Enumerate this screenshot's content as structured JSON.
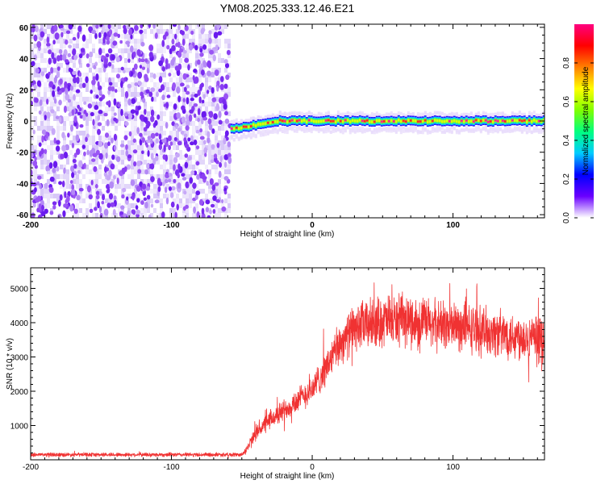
{
  "title": "YM08.2025.333.12.46.E21",
  "chart_data": [
    {
      "type": "heatmap",
      "name": "spectrogram",
      "xlabel": "Height of straight line (km)",
      "ylabel": "Frequency (Hz)",
      "xlim": [
        -200,
        165
      ],
      "ylim": [
        -62,
        62
      ],
      "xticks": [
        -200,
        -100,
        0,
        100
      ],
      "xtick_labels": [
        "-200",
        "-100",
        "0",
        "100"
      ],
      "yticks": [
        -60,
        -40,
        -20,
        0,
        20,
        40,
        60
      ],
      "ytick_labels": [
        "-60",
        "-40",
        "-20",
        "0",
        "20",
        "40",
        "60"
      ],
      "noise_region_x": [
        -200,
        -58
      ],
      "signal_start_x": -58,
      "signal_frequency_hz": 0,
      "signal_start_frequency_hz": -5,
      "colorbar": {
        "label": "Normalized spectral amplitude",
        "range": [
          0,
          1
        ],
        "ticks": [
          0.0,
          0.2,
          0.4,
          0.6,
          0.8
        ],
        "tick_labels": [
          "0.0",
          "0.2",
          "0.4",
          "0.6",
          "0.8"
        ],
        "colors": [
          "#ffffff",
          "#6a00ff",
          "#0000ff",
          "#00ccff",
          "#00ff80",
          "#80ff00",
          "#ffff00",
          "#ff8000",
          "#ff0000",
          "#ff0080"
        ]
      }
    },
    {
      "type": "line",
      "name": "snr",
      "xlabel": "Height of straight line (km)",
      "ylabel": "SNR (10 * v/v)",
      "xlim": [
        -200,
        165
      ],
      "ylim": [
        0,
        5600
      ],
      "xticks": [
        -200,
        -100,
        0,
        100
      ],
      "xtick_labels": [
        "-200",
        "-100",
        "0",
        "100"
      ],
      "yticks": [
        1000,
        2000,
        3000,
        4000,
        5000
      ],
      "ytick_labels": [
        "1000",
        "2000",
        "3000",
        "4000",
        "5000"
      ],
      "color": "#f03232",
      "trend": {
        "x": [
          -200,
          -150,
          -100,
          -50,
          -45,
          -40,
          -30,
          -20,
          -10,
          0,
          10,
          20,
          30,
          40,
          50,
          70,
          90,
          110,
          130,
          150,
          165
        ],
        "y": [
          150,
          150,
          150,
          150,
          400,
          800,
          1150,
          1450,
          1750,
          2050,
          2700,
          3400,
          3850,
          3950,
          4050,
          4050,
          3950,
          3850,
          3700,
          3600,
          3450
        ]
      }
    }
  ]
}
